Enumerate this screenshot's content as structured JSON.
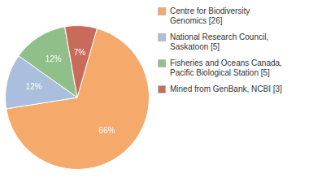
{
  "chart_data": {
    "type": "pie",
    "categories": [
      "Centre for Biodiversity\nGenomics [26]",
      "National Research Council,\nSaskatoon [5]",
      "Fisheries and Oceans Canada,\nPacific Biological Station [5]",
      "Mined from GenBank, NCBI [3]"
    ],
    "values": [
      66,
      12,
      12,
      7
    ],
    "value_labels": [
      "66%",
      "12%",
      "12%",
      "7%"
    ],
    "colors": [
      "#F5A96B",
      "#AABFDD",
      "#90BF8A",
      "#C96B5A"
    ],
    "data_labels": true,
    "legend": "right"
  }
}
